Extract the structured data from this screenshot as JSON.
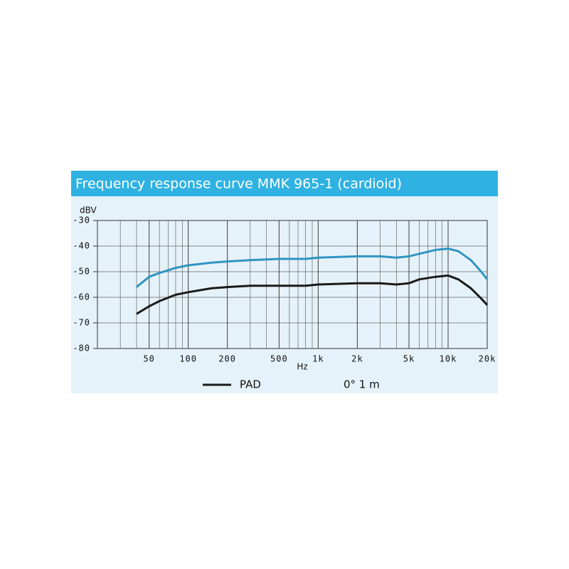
{
  "chart_data": {
    "type": "line",
    "title": "Frequency response curve MMK 965-1 (cardioid)",
    "y_label": "dBV",
    "x_label": "Hz",
    "annotation": "0°  1 m",
    "log_x": true,
    "grid": true,
    "minor_grid": true,
    "xlim": [
      20,
      20000
    ],
    "xticks": [
      50,
      100,
      200,
      500,
      {
        "value": 1000,
        "label": "1k"
      },
      {
        "value": 2000,
        "label": "2k"
      },
      {
        "value": 5000,
        "label": "5k"
      },
      {
        "value": 10000,
        "label": "10k"
      },
      {
        "value": 20000,
        "label": "20k"
      }
    ],
    "ylim": [
      -80,
      -30
    ],
    "yticks": [
      -30,
      -40,
      -50,
      -60,
      -70,
      -80
    ],
    "x": [
      40,
      50,
      60,
      80,
      100,
      150,
      200,
      300,
      500,
      800,
      1000,
      2000,
      3000,
      4000,
      5000,
      6000,
      8000,
      10000,
      12000,
      15000,
      18000,
      20000
    ],
    "series": [
      {
        "color": "#2f95c0",
        "values": [
          -56,
          -52,
          -50.5,
          -48.5,
          -47.5,
          -46.5,
          -46,
          -45.5,
          -45,
          -45,
          -44.5,
          -44,
          -44,
          -44.5,
          -44,
          -43,
          -41.5,
          -41,
          -42,
          -45.5,
          -50,
          -53
        ]
      },
      {
        "name": "PAD",
        "color": "#1a1a1a",
        "values": [
          -66.5,
          -63.5,
          -61.5,
          -59,
          -58,
          -56.5,
          -56,
          -55.5,
          -55.5,
          -55.5,
          -55,
          -54.5,
          -54.5,
          -55,
          -54.5,
          -53,
          -52,
          -51.5,
          -53,
          -56.5,
          -60.5,
          -63
        ]
      }
    ]
  }
}
